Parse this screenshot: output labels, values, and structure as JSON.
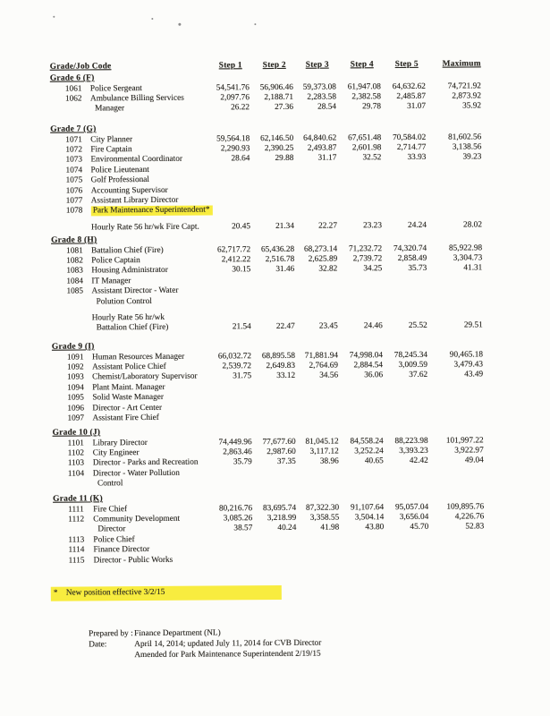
{
  "colors": {
    "highlight": "#f8ec3f",
    "ink": "#26241f",
    "paper": "#fcfcfa"
  },
  "table": {
    "columns": [
      "Grade/Job Code",
      "Step 1",
      "Step 2",
      "Step 3",
      "Step 4",
      "Step 5",
      "Maximum"
    ],
    "grades": [
      {
        "name": "Grade 6 (F)",
        "lines": [
          {
            "code": "1061",
            "title": "Police Sergeant",
            "values": [
              "54,541.76",
              "56,906.46",
              "59,373.08",
              "61,947.08",
              "64,632.62",
              "74,721.92"
            ]
          },
          {
            "code": "1062",
            "title": "Ambulance Billing Services",
            "values": [
              "2,097.76",
              "2,188.71",
              "2,283.58",
              "2,382.58",
              "2,485.87",
              "2,873.92"
            ]
          },
          {
            "title": "Manager",
            "indent": true,
            "values": [
              "26.22",
              "27.36",
              "28.54",
              "29.78",
              "31.07",
              "35.92"
            ]
          }
        ]
      },
      {
        "name": "Grade 7 (G)",
        "lines": [
          {
            "code": "1071",
            "title": "City Planner",
            "values": [
              "59,564.18",
              "62,146.50",
              "64,840.62",
              "67,651.48",
              "70,584.02",
              "81,602.56"
            ]
          },
          {
            "code": "1072",
            "title": "Fire Captain",
            "values": [
              "2,290.93",
              "2,390.25",
              "2,493.87",
              "2,601.98",
              "2,714.77",
              "3,138.56"
            ]
          },
          {
            "code": "1073",
            "title": "Environmental Coordinator",
            "values": [
              "28.64",
              "29.88",
              "31.17",
              "32.52",
              "33.93",
              "39.23"
            ]
          },
          {
            "code": "1074",
            "title": "Police Lieutenant"
          },
          {
            "code": "1075",
            "title": "Golf Professional"
          },
          {
            "code": "1076",
            "title": "Accounting Supervisor"
          },
          {
            "code": "1077",
            "title": "Assistant Library Director"
          },
          {
            "code": "1078",
            "title": "Park Maintenance Superintendent*",
            "highlight": true
          },
          {
            "title": "Hourly Rate 56 hr/wk Fire Capt.",
            "gap_before": true,
            "values": [
              "20.45",
              "21.34",
              "22.27",
              "23.23",
              "24.24",
              "28.02"
            ]
          }
        ]
      },
      {
        "name": "Grade 8 (H)",
        "lines": [
          {
            "code": "1081",
            "title": "Battalion Chief (Fire)",
            "values": [
              "62,717.72",
              "65,436.28",
              "68,273.14",
              "71,232.72",
              "74,320.74",
              "85,922.98"
            ]
          },
          {
            "code": "1082",
            "title": "Police Captain",
            "values": [
              "2,412.22",
              "2,516.78",
              "2,625.89",
              "2,739.72",
              "2,858.49",
              "3,304.73"
            ]
          },
          {
            "code": "1083",
            "title": "Housing Administrator",
            "values": [
              "30.15",
              "31.46",
              "32.82",
              "34.25",
              "35.73",
              "41.31"
            ]
          },
          {
            "code": "1084",
            "title": "IT Manager"
          },
          {
            "code": "1085",
            "title": "Assistant Director - Water"
          },
          {
            "title": "Polution Control",
            "indent": true
          },
          {
            "title": "Hourly Rate 56 hr/wk",
            "gap_before": true
          },
          {
            "title": "Battalion Chief (Fire)",
            "indent": true,
            "values": [
              "21.54",
              "22.47",
              "23.45",
              "24.46",
              "25.52",
              "29.51"
            ]
          }
        ]
      },
      {
        "name": "Grade 9 (I)",
        "lines": [
          {
            "code": "1091",
            "title": "Human Resources Manager",
            "values": [
              "66,032.72",
              "68,895.58",
              "71,881.94",
              "74,998.04",
              "78,245.34",
              "90,465.18"
            ]
          },
          {
            "code": "1092",
            "title": "Assistant Police Chief",
            "values": [
              "2,539.72",
              "2,649.83",
              "2,764.69",
              "2,884.54",
              "3,009.59",
              "3,479.43"
            ]
          },
          {
            "code": "1093",
            "title": "Chemist/Laboratory Supervisor",
            "values": [
              "31.75",
              "33.12",
              "34.56",
              "36.06",
              "37.62",
              "43.49"
            ]
          },
          {
            "code": "1094",
            "title": "Plant Maint. Manager"
          },
          {
            "code": "1095",
            "title": "Solid Waste Manager"
          },
          {
            "code": "1096",
            "title": "Director - Art Center"
          },
          {
            "code": "1097",
            "title": "Assistant Fire Chief"
          }
        ]
      },
      {
        "name": "Grade 10 (J)",
        "lines": [
          {
            "code": "1101",
            "title": "Library Director",
            "values": [
              "74,449.96",
              "77,677.60",
              "81,045.12",
              "84,558.24",
              "88,223.98",
              "101,997.22"
            ]
          },
          {
            "code": "1102",
            "title": "City Engineer",
            "values": [
              "2,863.46",
              "2,987.60",
              "3,117.12",
              "3,252.24",
              "3,393.23",
              "3,922.97"
            ]
          },
          {
            "code": "1103",
            "title": "Director - Parks and Recreation",
            "values": [
              "35.79",
              "37.35",
              "38.96",
              "40.65",
              "42.42",
              "49.04"
            ]
          },
          {
            "code": "1104",
            "title": "Director - Water Pollution"
          },
          {
            "title": "Control",
            "indent": true
          }
        ]
      },
      {
        "name": "Grade 11 (K)",
        "lines": [
          {
            "code": "1111",
            "title": "Fire Chief",
            "values": [
              "80,216.76",
              "83,695.74",
              "87,322.30",
              "91,107.64",
              "95,057.04",
              "109,895.76"
            ]
          },
          {
            "code": "1112",
            "title": "Community Development",
            "values": [
              "3,085.26",
              "3,218.99",
              "3,358.55",
              "3,504.14",
              "3,656.04",
              "4,226.76"
            ]
          },
          {
            "title": "Director",
            "indent": true,
            "values": [
              "38.57",
              "40.24",
              "41.98",
              "43.80",
              "45.70",
              "52.83"
            ]
          },
          {
            "code": "1113",
            "title": "Police Chief"
          },
          {
            "code": "1114",
            "title": "Finance Director"
          },
          {
            "code": "1115",
            "title": "Director - Public Works"
          }
        ]
      }
    ]
  },
  "footnote": {
    "marker": "*",
    "text": "New position effective 3/2/15"
  },
  "footer": {
    "prepared_label": "Prepared by :",
    "prepared_value": "Finance Department (NL)",
    "date_label": "Date:",
    "date_value": "April 14, 2014; updated July 11, 2014 for CVB Director",
    "amended_value": "Amended for Park Maintenance Superintendent 2/19/15"
  }
}
